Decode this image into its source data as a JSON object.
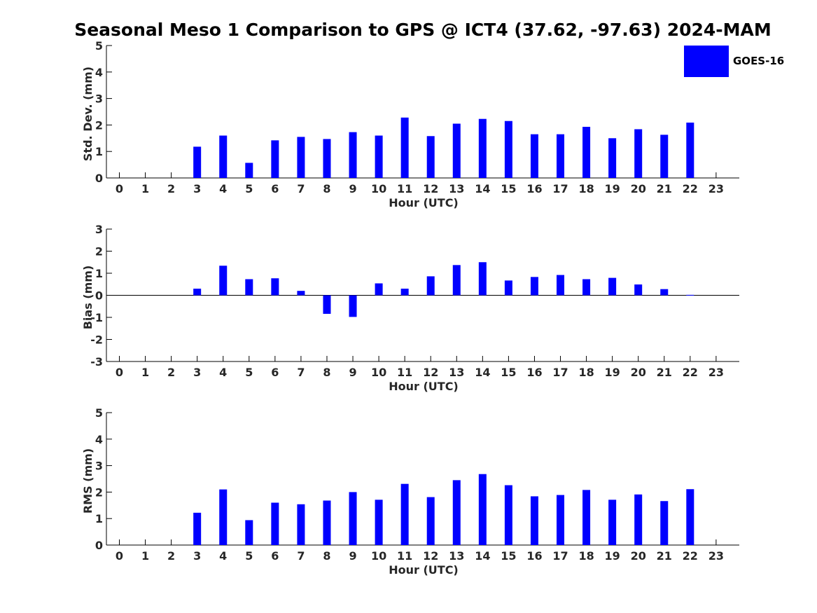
{
  "title": "Seasonal Meso 1 Comparison to GPS @ ICT4 (37.62, -97.63) 2024-MAM",
  "colors": {
    "bar": "#0000ff",
    "axis": "#000000",
    "text": "#262626"
  },
  "legend": {
    "label": "GOES-16",
    "placement": "top-right"
  },
  "chart_data": [
    {
      "type": "bar",
      "xlabel": "Hour (UTC)",
      "ylabel": "Std. Dev. (mm)",
      "ylim": [
        0,
        5
      ],
      "yticks": [
        0,
        1,
        2,
        3,
        4,
        5
      ],
      "categories": [
        "0",
        "1",
        "2",
        "3",
        "4",
        "5",
        "6",
        "7",
        "8",
        "9",
        "10",
        "11",
        "12",
        "13",
        "14",
        "15",
        "16",
        "17",
        "18",
        "19",
        "20",
        "21",
        "22",
        "23"
      ],
      "series": [
        {
          "name": "GOES-16",
          "values": [
            null,
            null,
            null,
            1.18,
            1.6,
            0.57,
            1.42,
            1.55,
            1.47,
            1.73,
            1.6,
            2.28,
            1.58,
            2.05,
            2.23,
            2.15,
            1.65,
            1.65,
            1.93,
            1.5,
            1.84,
            1.63,
            2.09,
            null
          ]
        }
      ]
    },
    {
      "type": "bar",
      "xlabel": "Hour (UTC)",
      "ylabel": "Bias (mm)",
      "ylim": [
        -3,
        3
      ],
      "yticks": [
        -3,
        -2,
        -1,
        0,
        1,
        2,
        3
      ],
      "categories": [
        "0",
        "1",
        "2",
        "3",
        "4",
        "5",
        "6",
        "7",
        "8",
        "9",
        "10",
        "11",
        "12",
        "13",
        "14",
        "15",
        "16",
        "17",
        "18",
        "19",
        "20",
        "21",
        "22",
        "23"
      ],
      "series": [
        {
          "name": "GOES-16",
          "values": [
            null,
            null,
            null,
            0.3,
            1.34,
            0.73,
            0.77,
            0.2,
            -0.84,
            -0.98,
            0.54,
            0.3,
            0.86,
            1.37,
            1.5,
            0.67,
            0.83,
            0.92,
            0.73,
            0.79,
            0.49,
            0.28,
            0.02,
            null
          ]
        }
      ]
    },
    {
      "type": "bar",
      "xlabel": "Hour (UTC)",
      "ylabel": "RMS (mm)",
      "ylim": [
        0,
        5
      ],
      "yticks": [
        0,
        1,
        2,
        3,
        4,
        5
      ],
      "categories": [
        "0",
        "1",
        "2",
        "3",
        "4",
        "5",
        "6",
        "7",
        "8",
        "9",
        "10",
        "11",
        "12",
        "13",
        "14",
        "15",
        "16",
        "17",
        "18",
        "19",
        "20",
        "21",
        "22",
        "23"
      ],
      "series": [
        {
          "name": "GOES-16",
          "values": [
            null,
            null,
            null,
            1.22,
            2.1,
            0.94,
            1.6,
            1.54,
            1.68,
            2.0,
            1.71,
            2.31,
            1.81,
            2.45,
            2.68,
            2.26,
            1.84,
            1.89,
            2.08,
            1.71,
            1.91,
            1.66,
            2.11,
            null
          ]
        }
      ]
    }
  ]
}
